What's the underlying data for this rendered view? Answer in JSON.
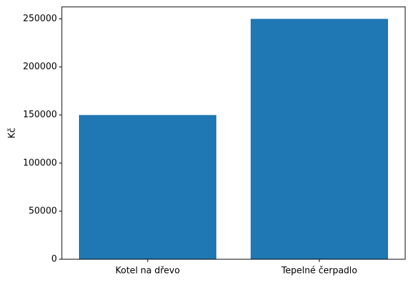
{
  "chart_data": {
    "type": "bar",
    "ylabel": "Kč",
    "categories": [
      "Kotel na dřevo",
      "Tepelné čerpadlo"
    ],
    "values": [
      150000,
      250000
    ],
    "color": "#1f77b4",
    "ylim": [
      0,
      262500
    ],
    "yticks": [
      0,
      50000,
      100000,
      150000,
      200000,
      250000
    ],
    "grid": false
  }
}
